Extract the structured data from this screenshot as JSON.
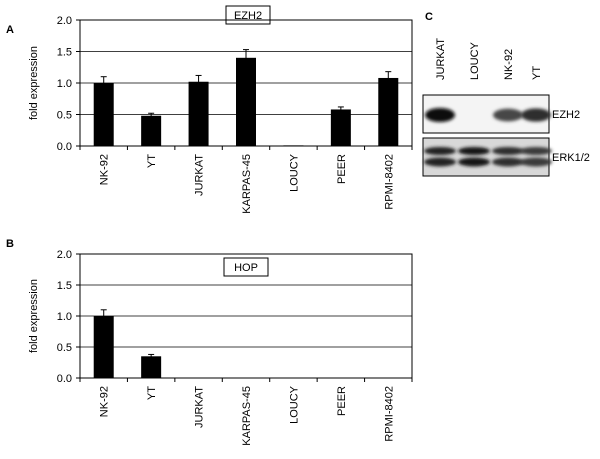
{
  "panels": {
    "A": "A",
    "B": "B",
    "C": "C"
  },
  "chart_data": [
    {
      "panel": "A",
      "type": "bar",
      "title": "EZH2",
      "ylabel": "fold expression",
      "xlabel": "",
      "categories": [
        "NK-92",
        "YT",
        "JURKAT",
        "KARPAS-45",
        "LOUCY",
        "PEER",
        "RPMI-8402"
      ],
      "values": [
        1.0,
        0.48,
        1.02,
        1.4,
        0.01,
        0.58,
        1.08
      ],
      "errors": [
        0.1,
        0.04,
        0.1,
        0.13,
        0.0,
        0.04,
        0.1
      ],
      "ylim": [
        0,
        2.0
      ],
      "yticks": [
        "0.0",
        "0.5",
        "1.0",
        "1.5",
        "2.0"
      ],
      "grid": true,
      "bar_color": "#000000"
    },
    {
      "panel": "B",
      "type": "bar",
      "title": "HOP",
      "ylabel": "fold expression",
      "xlabel": "",
      "categories": [
        "NK-92",
        "YT",
        "JURKAT",
        "KARPAS-45",
        "LOUCY",
        "PEER",
        "RPMI-8402"
      ],
      "values": [
        1.0,
        0.35,
        0,
        0,
        0,
        0,
        0
      ],
      "errors": [
        0.1,
        0.03,
        0,
        0,
        0,
        0,
        0
      ],
      "ylim": [
        0,
        2.0
      ],
      "yticks": [
        "0.0",
        "0.5",
        "1.0",
        "1.5",
        "2.0"
      ],
      "grid": true,
      "bar_color": "#000000"
    }
  ],
  "blot": {
    "lanes": [
      "JURKAT",
      "LOUCY",
      "NK-92",
      "YT"
    ],
    "rows": [
      {
        "label": "EZH2",
        "intensities": [
          1.0,
          0.0,
          0.75,
          0.85
        ]
      },
      {
        "label": "ERK1/2",
        "intensities": [
          0.9,
          0.95,
          0.85,
          0.8
        ]
      }
    ]
  }
}
